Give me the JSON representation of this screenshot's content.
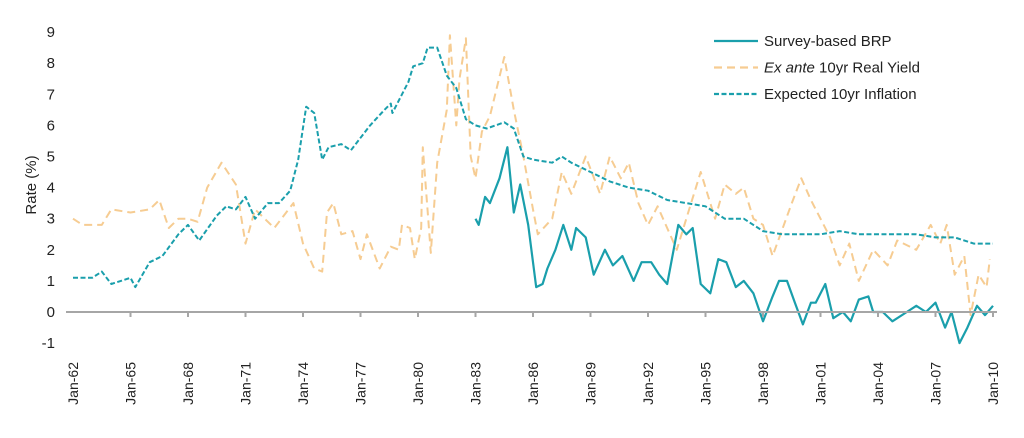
{
  "chart_data": {
    "type": "line",
    "title": "",
    "xlabel": "",
    "ylabel": "Rate (%)",
    "ylim": [
      -1,
      9
    ],
    "yticks": [
      "-1",
      "0",
      "1",
      "2",
      "3",
      "4",
      "5",
      "6",
      "7",
      "8",
      "9"
    ],
    "xlim": [
      "1962-01",
      "2010-01"
    ],
    "xticks": [
      "Jan-62",
      "Jan-65",
      "Jan-68",
      "Jan-71",
      "Jan-74",
      "Jan-77",
      "Jan-80",
      "Jan-83",
      "Jan-86",
      "Jan-89",
      "Jan-92",
      "Jan-95",
      "Jan-98",
      "Jan-01",
      "Jan-04",
      "Jan-07",
      "Jan-10"
    ],
    "grid": false,
    "legend_position": "top-right",
    "series": [
      {
        "name": "Survey-based BRP",
        "name_italic_prefix": "",
        "name_rest": "Survey-based BRP",
        "style": "solid",
        "color": "#1a9fac",
        "points": [
          [
            "1983-01",
            3.0
          ],
          [
            "1983-03",
            2.8
          ],
          [
            "1983-07",
            3.7
          ],
          [
            "1983-10",
            3.5
          ],
          [
            "1984-04",
            4.3
          ],
          [
            "1984-09",
            5.3
          ],
          [
            "1985-01",
            3.2
          ],
          [
            "1985-05",
            4.1
          ],
          [
            "1985-10",
            2.8
          ],
          [
            "1986-03",
            0.8
          ],
          [
            "1986-07",
            0.9
          ],
          [
            "1986-10",
            1.4
          ],
          [
            "1987-03",
            2.0
          ],
          [
            "1987-08",
            2.8
          ],
          [
            "1988-01",
            2.0
          ],
          [
            "1988-04",
            2.7
          ],
          [
            "1988-10",
            2.4
          ],
          [
            "1989-03",
            1.2
          ],
          [
            "1989-10",
            2.0
          ],
          [
            "1990-03",
            1.5
          ],
          [
            "1990-09",
            1.8
          ],
          [
            "1991-04",
            1.0
          ],
          [
            "1991-09",
            1.6
          ],
          [
            "1992-03",
            1.6
          ],
          [
            "1992-08",
            1.2
          ],
          [
            "1993-01",
            0.9
          ],
          [
            "1993-08",
            2.8
          ],
          [
            "1994-01",
            2.5
          ],
          [
            "1994-05",
            2.7
          ],
          [
            "1994-10",
            0.9
          ],
          [
            "1995-04",
            0.6
          ],
          [
            "1995-09",
            1.7
          ],
          [
            "1996-02",
            1.6
          ],
          [
            "1996-08",
            0.8
          ],
          [
            "1997-01",
            1.0
          ],
          [
            "1997-07",
            0.6
          ],
          [
            "1998-01",
            -0.3
          ],
          [
            "1998-07",
            0.5
          ],
          [
            "1998-11",
            1.0
          ],
          [
            "1999-04",
            1.0
          ],
          [
            "1999-09",
            0.3
          ],
          [
            "2000-02",
            -0.4
          ],
          [
            "2000-07",
            0.3
          ],
          [
            "2000-10",
            0.3
          ],
          [
            "2001-04",
            0.9
          ],
          [
            "2001-09",
            -0.2
          ],
          [
            "2002-03",
            0.0
          ],
          [
            "2002-08",
            -0.3
          ],
          [
            "2003-01",
            0.4
          ],
          [
            "2003-07",
            0.5
          ],
          [
            "2003-10",
            0.0
          ],
          [
            "2004-04",
            0.0
          ],
          [
            "2004-10",
            -0.3
          ],
          [
            "2005-07",
            0.0
          ],
          [
            "2006-01",
            0.2
          ],
          [
            "2006-07",
            0.0
          ],
          [
            "2007-01",
            0.3
          ],
          [
            "2007-07",
            -0.5
          ],
          [
            "2007-11",
            0.0
          ],
          [
            "2008-04",
            -1.0
          ],
          [
            "2008-09",
            -0.5
          ],
          [
            "2009-03",
            0.2
          ],
          [
            "2009-08",
            -0.1
          ],
          [
            "2010-01",
            0.2
          ]
        ]
      },
      {
        "name": "Ex ante 10yr Real Yield",
        "name_italic_prefix": "Ex ante",
        "name_rest": " 10yr Real Yield",
        "style": "long-dash",
        "color": "#f6cc92",
        "points": [
          [
            "1962-01",
            3.0
          ],
          [
            "1962-07",
            2.8
          ],
          [
            "1963-07",
            2.8
          ],
          [
            "1964-01",
            3.3
          ],
          [
            "1965-01",
            3.2
          ],
          [
            "1966-01",
            3.3
          ],
          [
            "1966-07",
            3.6
          ],
          [
            "1967-01",
            2.7
          ],
          [
            "1967-07",
            3.0
          ],
          [
            "1968-01",
            3.0
          ],
          [
            "1968-07",
            2.9
          ],
          [
            "1969-01",
            4.0
          ],
          [
            "1969-10",
            4.8
          ],
          [
            "1970-07",
            4.1
          ],
          [
            "1971-01",
            2.2
          ],
          [
            "1971-07",
            3.3
          ],
          [
            "1972-07",
            2.7
          ],
          [
            "1973-01",
            3.1
          ],
          [
            "1973-07",
            3.5
          ],
          [
            "1974-01",
            2.2
          ],
          [
            "1974-08",
            1.4
          ],
          [
            "1975-01",
            1.3
          ],
          [
            "1975-04",
            3.2
          ],
          [
            "1975-08",
            3.5
          ],
          [
            "1976-01",
            2.5
          ],
          [
            "1976-08",
            2.6
          ],
          [
            "1977-01",
            1.7
          ],
          [
            "1977-05",
            2.5
          ],
          [
            "1978-01",
            1.4
          ],
          [
            "1978-08",
            2.1
          ],
          [
            "1979-01",
            2.0
          ],
          [
            "1979-03",
            2.8
          ],
          [
            "1979-08",
            2.7
          ],
          [
            "1979-11",
            1.7
          ],
          [
            "1980-03",
            2.7
          ],
          [
            "1980-04",
            5.3
          ],
          [
            "1980-09",
            1.9
          ],
          [
            "1981-01",
            4.8
          ],
          [
            "1981-07",
            6.5
          ],
          [
            "1981-09",
            8.9
          ],
          [
            "1982-01",
            6.0
          ],
          [
            "1982-03",
            7.5
          ],
          [
            "1982-07",
            8.8
          ],
          [
            "1982-10",
            5.0
          ],
          [
            "1983-01",
            4.3
          ],
          [
            "1983-05",
            5.8
          ],
          [
            "1983-10",
            6.3
          ],
          [
            "1984-07",
            8.2
          ],
          [
            "1985-01",
            6.5
          ],
          [
            "1985-07",
            5.0
          ],
          [
            "1986-01",
            3.3
          ],
          [
            "1986-04",
            2.5
          ],
          [
            "1987-01",
            3.0
          ],
          [
            "1987-07",
            4.5
          ],
          [
            "1988-01",
            3.8
          ],
          [
            "1988-10",
            5.0
          ],
          [
            "1989-07",
            3.8
          ],
          [
            "1990-01",
            5.0
          ],
          [
            "1990-08",
            4.3
          ],
          [
            "1991-01",
            4.8
          ],
          [
            "1991-07",
            3.5
          ],
          [
            "1992-01",
            2.8
          ],
          [
            "1992-07",
            3.4
          ],
          [
            "1993-07",
            2.0
          ],
          [
            "1994-01",
            3.0
          ],
          [
            "1994-10",
            4.5
          ],
          [
            "1995-07",
            3.0
          ],
          [
            "1996-01",
            4.1
          ],
          [
            "1996-08",
            3.8
          ],
          [
            "1997-01",
            4.0
          ],
          [
            "1997-07",
            3.0
          ],
          [
            "1998-01",
            2.8
          ],
          [
            "1998-07",
            1.8
          ],
          [
            "1999-07",
            3.5
          ],
          [
            "2000-01",
            4.3
          ],
          [
            "2000-07",
            3.6
          ],
          [
            "2001-01",
            3.0
          ],
          [
            "2001-07",
            2.4
          ],
          [
            "2002-01",
            1.5
          ],
          [
            "2002-07",
            2.2
          ],
          [
            "2003-01",
            1.0
          ],
          [
            "2003-10",
            2.0
          ],
          [
            "2004-07",
            1.5
          ],
          [
            "2005-01",
            2.3
          ],
          [
            "2006-01",
            2.0
          ],
          [
            "2006-10",
            2.8
          ],
          [
            "2007-04",
            2.2
          ],
          [
            "2007-08",
            2.8
          ],
          [
            "2008-01",
            1.2
          ],
          [
            "2008-07",
            1.8
          ],
          [
            "2008-11",
            -0.1
          ],
          [
            "2009-04",
            1.2
          ],
          [
            "2009-09",
            0.8
          ],
          [
            "2009-11",
            1.7
          ]
        ]
      },
      {
        "name": "Expected 10yr Inflation",
        "name_italic_prefix": "",
        "name_rest": "Expected 10yr Inflation",
        "style": "short-dash",
        "color": "#1a9fac",
        "points": [
          [
            "1962-01",
            1.1
          ],
          [
            "1963-01",
            1.1
          ],
          [
            "1963-07",
            1.3
          ],
          [
            "1964-01",
            0.9
          ],
          [
            "1965-01",
            1.1
          ],
          [
            "1965-04",
            0.8
          ],
          [
            "1966-01",
            1.6
          ],
          [
            "1966-09",
            1.8
          ],
          [
            "1967-07",
            2.5
          ],
          [
            "1968-01",
            2.8
          ],
          [
            "1968-08",
            2.3
          ],
          [
            "1969-07",
            3.1
          ],
          [
            "1970-01",
            3.4
          ],
          [
            "1970-07",
            3.3
          ],
          [
            "1971-01",
            3.7
          ],
          [
            "1971-07",
            3.0
          ],
          [
            "1972-03",
            3.5
          ],
          [
            "1972-10",
            3.5
          ],
          [
            "1973-05",
            3.9
          ],
          [
            "1973-10",
            4.9
          ],
          [
            "1974-03",
            6.6
          ],
          [
            "1974-08",
            6.4
          ],
          [
            "1975-01",
            4.9
          ],
          [
            "1975-05",
            5.3
          ],
          [
            "1976-01",
            5.4
          ],
          [
            "1976-07",
            5.2
          ],
          [
            "1977-07",
            6.0
          ],
          [
            "1978-04",
            6.5
          ],
          [
            "1978-08",
            6.7
          ],
          [
            "1978-09",
            6.4
          ],
          [
            "1979-03",
            7.0
          ],
          [
            "1979-07",
            7.4
          ],
          [
            "1979-10",
            7.9
          ],
          [
            "1980-04",
            8.0
          ],
          [
            "1980-07",
            8.5
          ],
          [
            "1981-01",
            8.5
          ],
          [
            "1981-07",
            7.6
          ],
          [
            "1982-01",
            7.2
          ],
          [
            "1982-07",
            6.2
          ],
          [
            "1983-01",
            6.0
          ],
          [
            "1983-08",
            5.9
          ],
          [
            "1984-07",
            6.1
          ],
          [
            "1985-01",
            5.9
          ],
          [
            "1985-07",
            5.0
          ],
          [
            "1986-01",
            4.9
          ],
          [
            "1987-01",
            4.8
          ],
          [
            "1987-07",
            5.0
          ],
          [
            "1988-01",
            4.8
          ],
          [
            "1989-01",
            4.5
          ],
          [
            "1990-01",
            4.2
          ],
          [
            "1991-01",
            4.0
          ],
          [
            "1992-01",
            3.9
          ],
          [
            "1993-01",
            3.6
          ],
          [
            "1994-01",
            3.5
          ],
          [
            "1995-01",
            3.4
          ],
          [
            "1996-01",
            3.0
          ],
          [
            "1997-01",
            3.0
          ],
          [
            "1998-01",
            2.6
          ],
          [
            "1999-01",
            2.5
          ],
          [
            "2000-01",
            2.5
          ],
          [
            "2001-01",
            2.5
          ],
          [
            "2002-01",
            2.6
          ],
          [
            "2003-01",
            2.5
          ],
          [
            "2004-01",
            2.5
          ],
          [
            "2005-01",
            2.5
          ],
          [
            "2006-01",
            2.5
          ],
          [
            "2007-01",
            2.4
          ],
          [
            "2008-01",
            2.4
          ],
          [
            "2009-01",
            2.2
          ],
          [
            "2010-01",
            2.2
          ]
        ]
      }
    ]
  },
  "colors": {
    "axis": "#a6a6a6",
    "teal": "#1a9fac",
    "orange": "#f6cc92"
  }
}
